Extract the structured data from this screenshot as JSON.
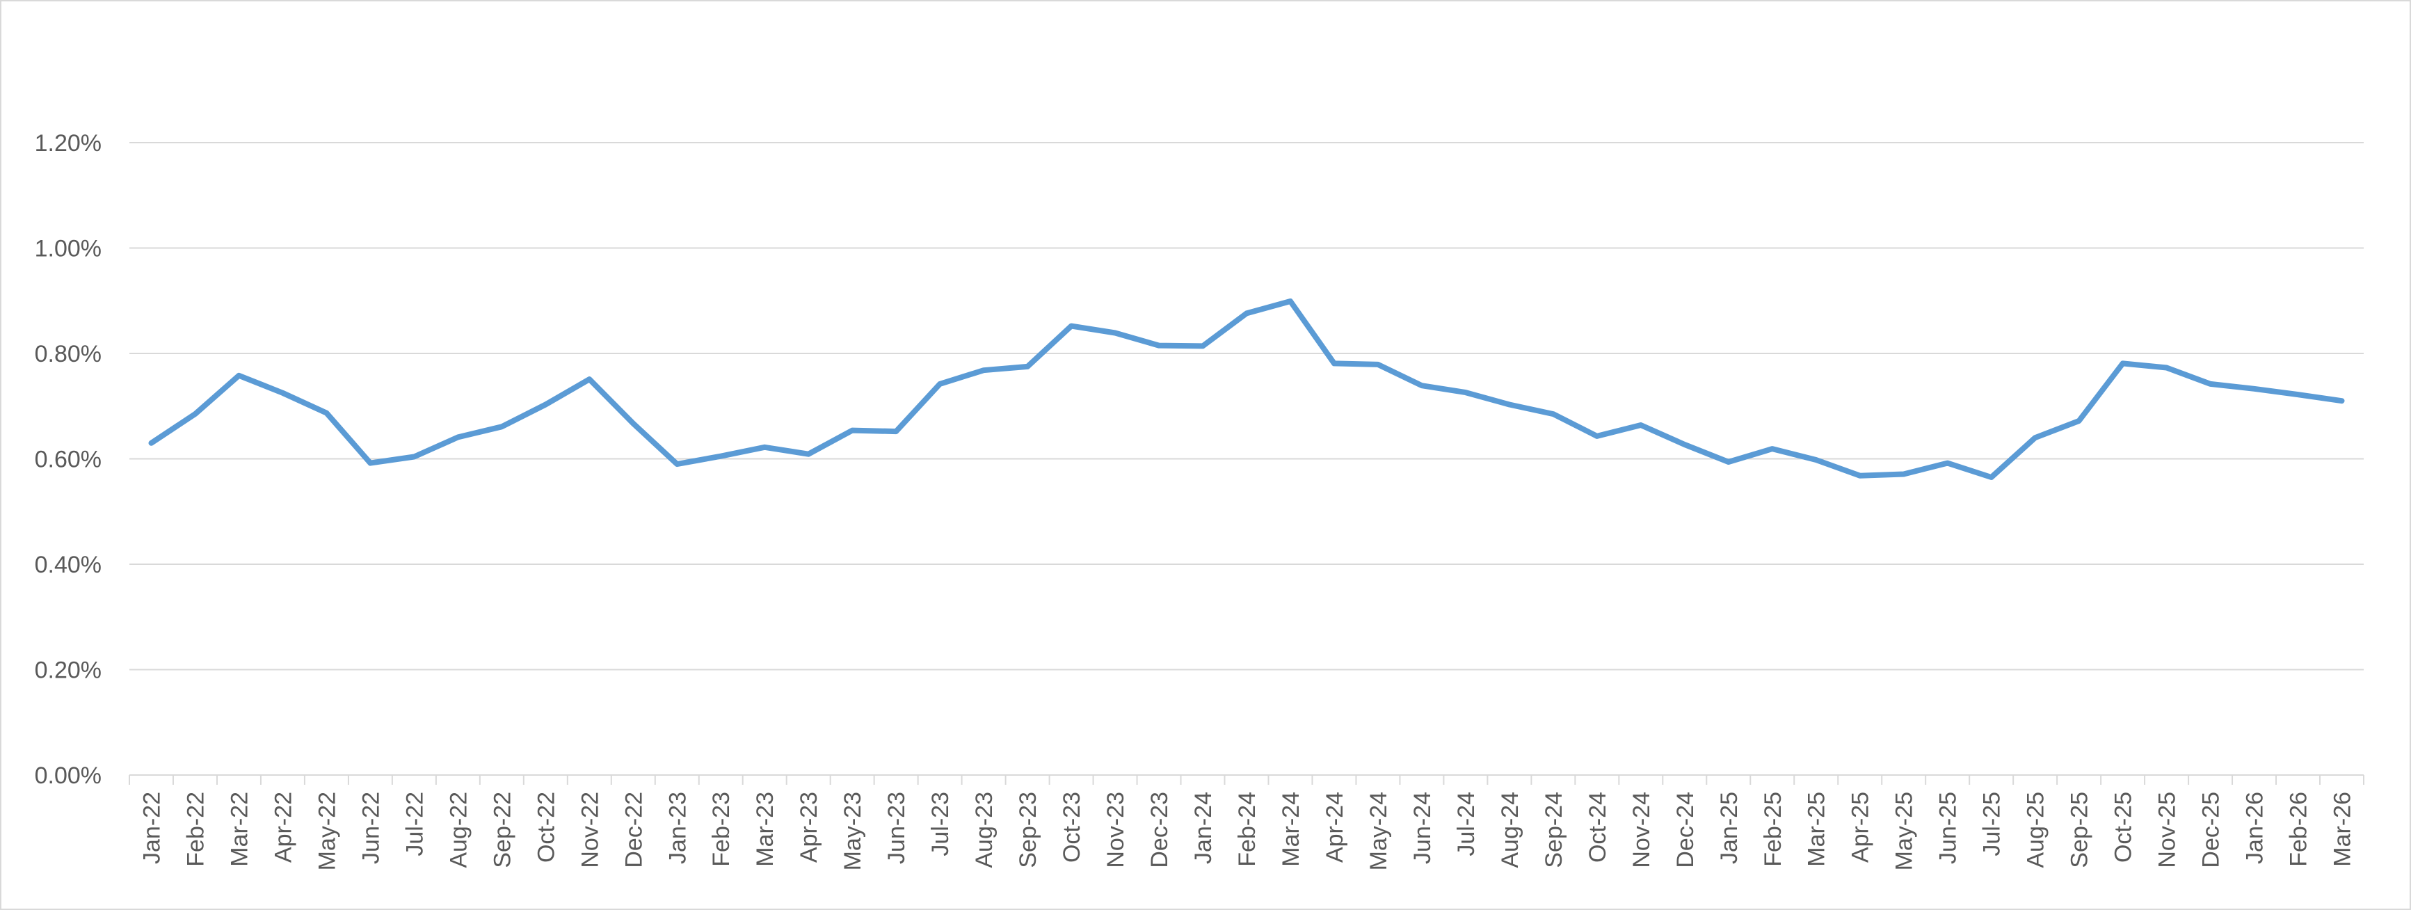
{
  "chart_data": {
    "type": "line",
    "title": "",
    "xlabel": "",
    "ylabel": "",
    "ylim": [
      0,
      1.2
    ],
    "yticks": [
      "0.00%",
      "0.20%",
      "0.40%",
      "0.60%",
      "0.80%",
      "1.00%",
      "1.20%"
    ],
    "grid": true,
    "legend": "none",
    "line_color": "#5B9BD5",
    "grid_color": "#d9d9d9",
    "categories": [
      "Jan-22",
      "Feb-22",
      "Mar-22",
      "Apr-22",
      "May-22",
      "Jun-22",
      "Jul-22",
      "Aug-22",
      "Sep-22",
      "Oct-22",
      "Nov-22",
      "Dec-22",
      "Jan-23",
      "Feb-23",
      "Mar-23",
      "Apr-23",
      "May-23",
      "Jun-23",
      "Jul-23",
      "Aug-23",
      "Sep-23",
      "Oct-23",
      "Nov-23",
      "Dec-23",
      "Jan-24",
      "Feb-24",
      "Mar-24",
      "Apr-24",
      "May-24",
      "Jun-24",
      "Jul-24",
      "Aug-24",
      "Sep-24",
      "Oct-24",
      "Nov-24",
      "Dec-24",
      "Jan-25",
      "Feb-25",
      "Mar-25",
      "Apr-25",
      "May-25",
      "Jun-25",
      "Jul-25",
      "Aug-25",
      "Sep-25",
      "Oct-25",
      "Nov-25",
      "Dec-25",
      "Jan-26",
      "Feb-26",
      "Mar-26"
    ],
    "series": [
      {
        "values": [
          0.63,
          0.685,
          0.758,
          0.725,
          0.687,
          0.592,
          0.604,
          0.641,
          0.661,
          0.703,
          0.751,
          0.667,
          0.59,
          0.605,
          0.622,
          0.609,
          0.654,
          0.652,
          0.742,
          0.768,
          0.775,
          0.852,
          0.839,
          0.815,
          0.814,
          0.876,
          0.899,
          0.781,
          0.779,
          0.739,
          0.726,
          0.703,
          0.685,
          0.643,
          0.664,
          0.627,
          0.594,
          0.619,
          0.598,
          0.568,
          0.571,
          0.592,
          0.565,
          0.64,
          0.672,
          0.781,
          0.773,
          0.742,
          0.733,
          0.722,
          0.71
        ]
      }
    ]
  }
}
